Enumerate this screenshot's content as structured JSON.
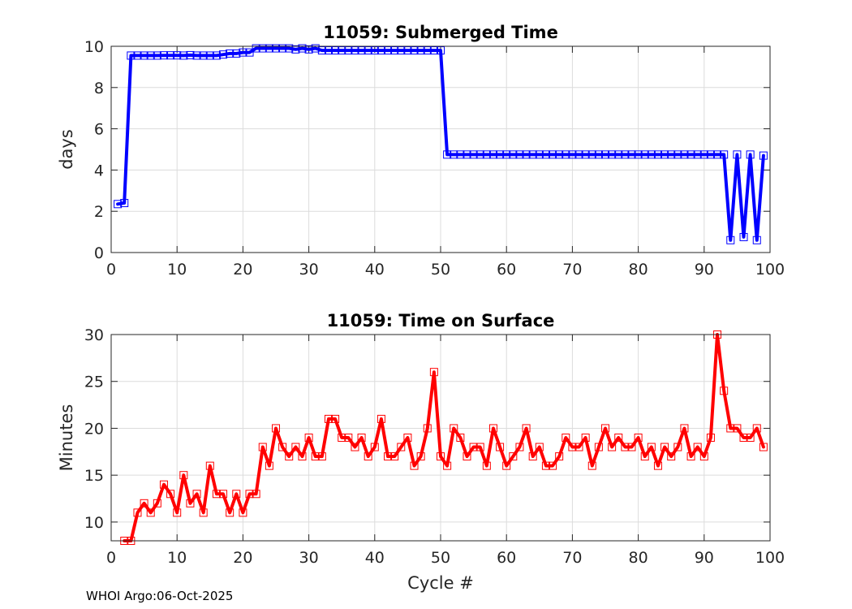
{
  "footer": "WHOI Argo:06-Oct-2025",
  "chart_data": [
    {
      "type": "line",
      "title": "11059: Submerged Time",
      "xlabel": "",
      "ylabel": "days",
      "xlim": [
        0,
        100
      ],
      "ylim": [
        0,
        10
      ],
      "xticks": [
        0,
        10,
        20,
        30,
        40,
        50,
        60,
        70,
        80,
        90,
        100
      ],
      "yticks": [
        0,
        2,
        4,
        6,
        8,
        10
      ],
      "grid": true,
      "color": "#0000ff",
      "marker": "square",
      "series": [
        {
          "name": "Submerged Time",
          "x": [
            1,
            2,
            3,
            4,
            5,
            6,
            7,
            8,
            9,
            10,
            11,
            12,
            13,
            14,
            15,
            16,
            17,
            18,
            19,
            20,
            21,
            22,
            23,
            24,
            25,
            26,
            27,
            28,
            29,
            30,
            31,
            32,
            33,
            34,
            35,
            36,
            37,
            38,
            39,
            40,
            41,
            42,
            43,
            44,
            45,
            46,
            47,
            48,
            49,
            50,
            51,
            52,
            53,
            54,
            55,
            56,
            57,
            58,
            59,
            60,
            61,
            62,
            63,
            64,
            65,
            66,
            67,
            68,
            69,
            70,
            71,
            72,
            73,
            74,
            75,
            76,
            77,
            78,
            79,
            80,
            81,
            82,
            83,
            84,
            85,
            86,
            87,
            88,
            89,
            90,
            91,
            92,
            93,
            94,
            95,
            96,
            97,
            98,
            99
          ],
          "values": [
            2.35,
            2.4,
            9.55,
            9.55,
            9.55,
            9.55,
            9.55,
            9.56,
            9.56,
            9.56,
            9.55,
            9.57,
            9.55,
            9.55,
            9.55,
            9.55,
            9.6,
            9.65,
            9.65,
            9.7,
            9.7,
            9.9,
            9.9,
            9.9,
            9.9,
            9.9,
            9.9,
            9.85,
            9.9,
            9.85,
            9.9,
            9.8,
            9.8,
            9.8,
            9.8,
            9.8,
            9.8,
            9.8,
            9.8,
            9.8,
            9.8,
            9.8,
            9.8,
            9.8,
            9.8,
            9.8,
            9.8,
            9.8,
            9.8,
            9.8,
            4.75,
            4.75,
            4.75,
            4.75,
            4.75,
            4.75,
            4.75,
            4.75,
            4.75,
            4.75,
            4.75,
            4.75,
            4.75,
            4.75,
            4.75,
            4.75,
            4.75,
            4.75,
            4.75,
            4.75,
            4.75,
            4.75,
            4.75,
            4.75,
            4.75,
            4.75,
            4.75,
            4.75,
            4.75,
            4.75,
            4.75,
            4.75,
            4.75,
            4.75,
            4.75,
            4.75,
            4.75,
            4.75,
            4.75,
            4.75,
            4.75,
            4.75,
            4.75,
            0.6,
            4.75,
            0.75,
            4.75,
            0.6,
            4.7
          ]
        }
      ]
    },
    {
      "type": "line",
      "title": "11059: Time on Surface",
      "xlabel": "Cycle #",
      "ylabel": "Minutes",
      "xlim": [
        0,
        100
      ],
      "ylim": [
        8,
        30
      ],
      "xticks": [
        0,
        10,
        20,
        30,
        40,
        50,
        60,
        70,
        80,
        90,
        100
      ],
      "yticks": [
        10,
        15,
        20,
        25,
        30
      ],
      "grid": true,
      "color": "#ff0000",
      "marker": "square",
      "series": [
        {
          "name": "Time on Surface",
          "x": [
            2,
            3,
            4,
            5,
            6,
            7,
            8,
            9,
            10,
            11,
            12,
            13,
            14,
            15,
            16,
            17,
            18,
            19,
            20,
            21,
            22,
            23,
            24,
            25,
            26,
            27,
            28,
            29,
            30,
            31,
            32,
            33,
            34,
            35,
            36,
            37,
            38,
            39,
            40,
            41,
            42,
            43,
            44,
            45,
            46,
            47,
            48,
            49,
            50,
            51,
            52,
            53,
            54,
            55,
            56,
            57,
            58,
            59,
            60,
            61,
            62,
            63,
            64,
            65,
            66,
            67,
            68,
            69,
            70,
            71,
            72,
            73,
            74,
            75,
            76,
            77,
            78,
            79,
            80,
            81,
            82,
            83,
            84,
            85,
            86,
            87,
            88,
            89,
            90,
            91,
            92,
            93,
            94,
            95,
            96,
            97,
            98,
            99
          ],
          "values": [
            8,
            8,
            11,
            12,
            11,
            12,
            14,
            13,
            11,
            15,
            12,
            13,
            11,
            16,
            13,
            13,
            11,
            13,
            11,
            13,
            13,
            18,
            16,
            20,
            18,
            17,
            18,
            17,
            19,
            17,
            17,
            21,
            21,
            19,
            19,
            18,
            19,
            17,
            18,
            21,
            17,
            17,
            18,
            19,
            16,
            17,
            20,
            26,
            17,
            16,
            20,
            19,
            17,
            18,
            18,
            16,
            20,
            18,
            16,
            17,
            18,
            20,
            17,
            18,
            16,
            16,
            17,
            19,
            18,
            18,
            19,
            16,
            18,
            20,
            18,
            19,
            18,
            18,
            19,
            17,
            18,
            16,
            18,
            17,
            18,
            20,
            17,
            18,
            17,
            19,
            30,
            24,
            20,
            20,
            19,
            19,
            20,
            18
          ]
        }
      ]
    }
  ]
}
